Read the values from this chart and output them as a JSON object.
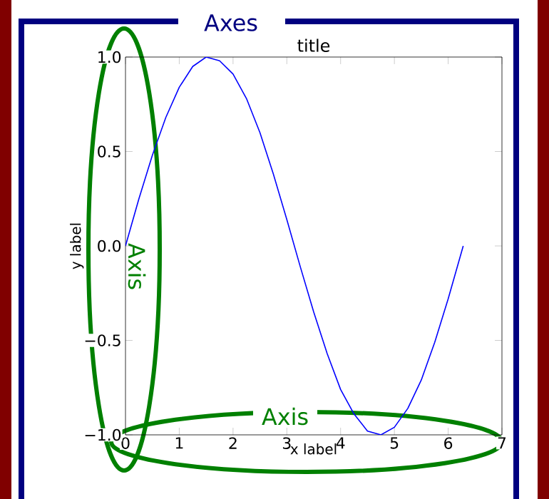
{
  "chart_data": {
    "type": "line",
    "title": "title",
    "xlabel": "x label",
    "ylabel": "y label",
    "annotations": [
      "Axes",
      "Axis",
      "Axis"
    ],
    "xlim": [
      0,
      7
    ],
    "ylim": [
      -1,
      1
    ],
    "xticks": [
      0,
      1,
      2,
      3,
      4,
      5,
      6,
      7
    ],
    "yticks": [
      {
        "value": -1,
        "label": "−1.0"
      },
      {
        "value": -0.5,
        "label": "−0.5"
      },
      {
        "value": 0,
        "label": "0.0"
      },
      {
        "value": 0.5,
        "label": "0.5"
      },
      {
        "value": 1,
        "label": "1.0"
      }
    ],
    "grid": false,
    "marker": "none",
    "line_style": "solid",
    "series": [
      {
        "color": "#0000ff",
        "x": [
          0,
          0.25,
          0.5,
          0.75,
          1,
          1.25,
          1.5,
          1.75,
          2,
          2.25,
          2.5,
          2.75,
          3,
          3.25,
          3.5,
          3.75,
          4,
          4.25,
          4.5,
          4.75,
          5,
          5.25,
          5.5,
          5.75,
          6,
          6.25,
          6.28
        ],
        "values": [
          0,
          0.25,
          0.48,
          0.68,
          0.84,
          0.95,
          1.0,
          0.98,
          0.91,
          0.78,
          0.6,
          0.38,
          0.14,
          -0.11,
          -0.35,
          -0.57,
          -0.76,
          -0.89,
          -0.98,
          -1.0,
          -0.96,
          -0.86,
          -0.71,
          -0.51,
          -0.28,
          -0.03,
          0.0
        ]
      }
    ]
  }
}
